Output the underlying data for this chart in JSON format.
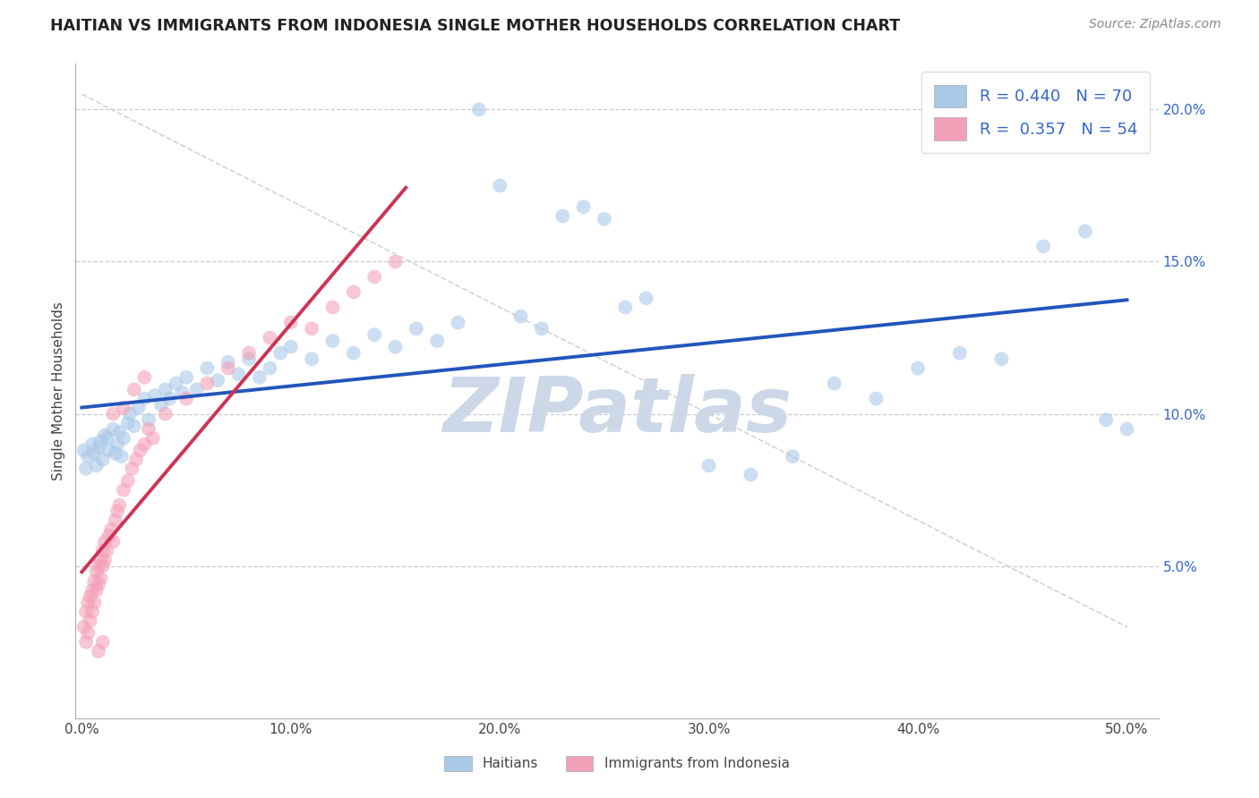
{
  "title": "HAITIAN VS IMMIGRANTS FROM INDONESIA SINGLE MOTHER HOUSEHOLDS CORRELATION CHART",
  "source": "Source: ZipAtlas.com",
  "ylabel": "Single Mother Households",
  "x_tick_labels": [
    "0.0%",
    "10.0%",
    "20.0%",
    "30.0%",
    "40.0%",
    "50.0%"
  ],
  "x_tick_values": [
    0.0,
    0.1,
    0.2,
    0.3,
    0.4,
    0.5
  ],
  "y_tick_labels": [
    "5.0%",
    "10.0%",
    "15.0%",
    "20.0%"
  ],
  "y_tick_values": [
    0.05,
    0.1,
    0.15,
    0.2
  ],
  "xlim": [
    -0.003,
    0.515
  ],
  "ylim": [
    0.0,
    0.215
  ],
  "blue_dot_color": "#aac8e8",
  "pink_dot_color": "#f4a0b8",
  "blue_line_color": "#2255bb",
  "pink_line_color": "#cc3355",
  "diag_line_color": "#cccccc",
  "grid_color": "#cccccc",
  "watermark_color": "#ccd8e8",
  "background_color": "#ffffff",
  "R_blue": 0.44,
  "N_blue": 70,
  "R_pink": 0.357,
  "N_pink": 54,
  "legend_label_blue": "R = 0.440   N = 70",
  "legend_label_pink": "R =  0.357   N = 54",
  "bottom_label_blue": "Haitians",
  "bottom_label_pink": "Immigrants from Indonesia",
  "text_color_blue": "#3366cc",
  "text_color_dark": "#222222",
  "blue_x": [
    0.001,
    0.002,
    0.003,
    0.005,
    0.006,
    0.007,
    0.008,
    0.009,
    0.01,
    0.011,
    0.012,
    0.013,
    0.015,
    0.016,
    0.017,
    0.018,
    0.019,
    0.02,
    0.022,
    0.023,
    0.025,
    0.027,
    0.03,
    0.032,
    0.035,
    0.038,
    0.04,
    0.042,
    0.045,
    0.048,
    0.05,
    0.055,
    0.06,
    0.065,
    0.07,
    0.075,
    0.08,
    0.085,
    0.09,
    0.095,
    0.1,
    0.11,
    0.12,
    0.13,
    0.14,
    0.15,
    0.16,
    0.17,
    0.18,
    0.19,
    0.2,
    0.21,
    0.22,
    0.23,
    0.24,
    0.25,
    0.26,
    0.27,
    0.3,
    0.32,
    0.34,
    0.36,
    0.38,
    0.4,
    0.42,
    0.44,
    0.46,
    0.48,
    0.49,
    0.5
  ],
  "blue_y": [
    0.088,
    0.082,
    0.086,
    0.09,
    0.087,
    0.083,
    0.089,
    0.091,
    0.085,
    0.093,
    0.092,
    0.088,
    0.095,
    0.087,
    0.09,
    0.094,
    0.086,
    0.092,
    0.097,
    0.1,
    0.096,
    0.102,
    0.105,
    0.098,
    0.106,
    0.103,
    0.108,
    0.105,
    0.11,
    0.107,
    0.112,
    0.108,
    0.115,
    0.111,
    0.117,
    0.113,
    0.118,
    0.112,
    0.115,
    0.12,
    0.122,
    0.118,
    0.124,
    0.12,
    0.126,
    0.122,
    0.128,
    0.124,
    0.13,
    0.2,
    0.175,
    0.132,
    0.128,
    0.165,
    0.168,
    0.164,
    0.135,
    0.138,
    0.083,
    0.08,
    0.086,
    0.11,
    0.105,
    0.115,
    0.12,
    0.118,
    0.155,
    0.16,
    0.098,
    0.095
  ],
  "pink_x": [
    0.001,
    0.002,
    0.002,
    0.003,
    0.003,
    0.004,
    0.004,
    0.005,
    0.005,
    0.006,
    0.006,
    0.007,
    0.007,
    0.008,
    0.008,
    0.009,
    0.009,
    0.01,
    0.01,
    0.011,
    0.011,
    0.012,
    0.013,
    0.014,
    0.015,
    0.016,
    0.017,
    0.018,
    0.02,
    0.022,
    0.024,
    0.026,
    0.028,
    0.03,
    0.032,
    0.034,
    0.04,
    0.05,
    0.06,
    0.07,
    0.08,
    0.09,
    0.1,
    0.11,
    0.12,
    0.13,
    0.14,
    0.15,
    0.015,
    0.02,
    0.025,
    0.03,
    0.01,
    0.008
  ],
  "pink_y": [
    0.03,
    0.025,
    0.035,
    0.028,
    0.038,
    0.032,
    0.04,
    0.035,
    0.042,
    0.038,
    0.045,
    0.042,
    0.048,
    0.044,
    0.05,
    0.046,
    0.052,
    0.05,
    0.055,
    0.052,
    0.058,
    0.055,
    0.06,
    0.062,
    0.058,
    0.065,
    0.068,
    0.07,
    0.075,
    0.078,
    0.082,
    0.085,
    0.088,
    0.09,
    0.095,
    0.092,
    0.1,
    0.105,
    0.11,
    0.115,
    0.12,
    0.125,
    0.13,
    0.128,
    0.135,
    0.14,
    0.145,
    0.15,
    0.1,
    0.102,
    0.108,
    0.112,
    0.025,
    0.022
  ]
}
